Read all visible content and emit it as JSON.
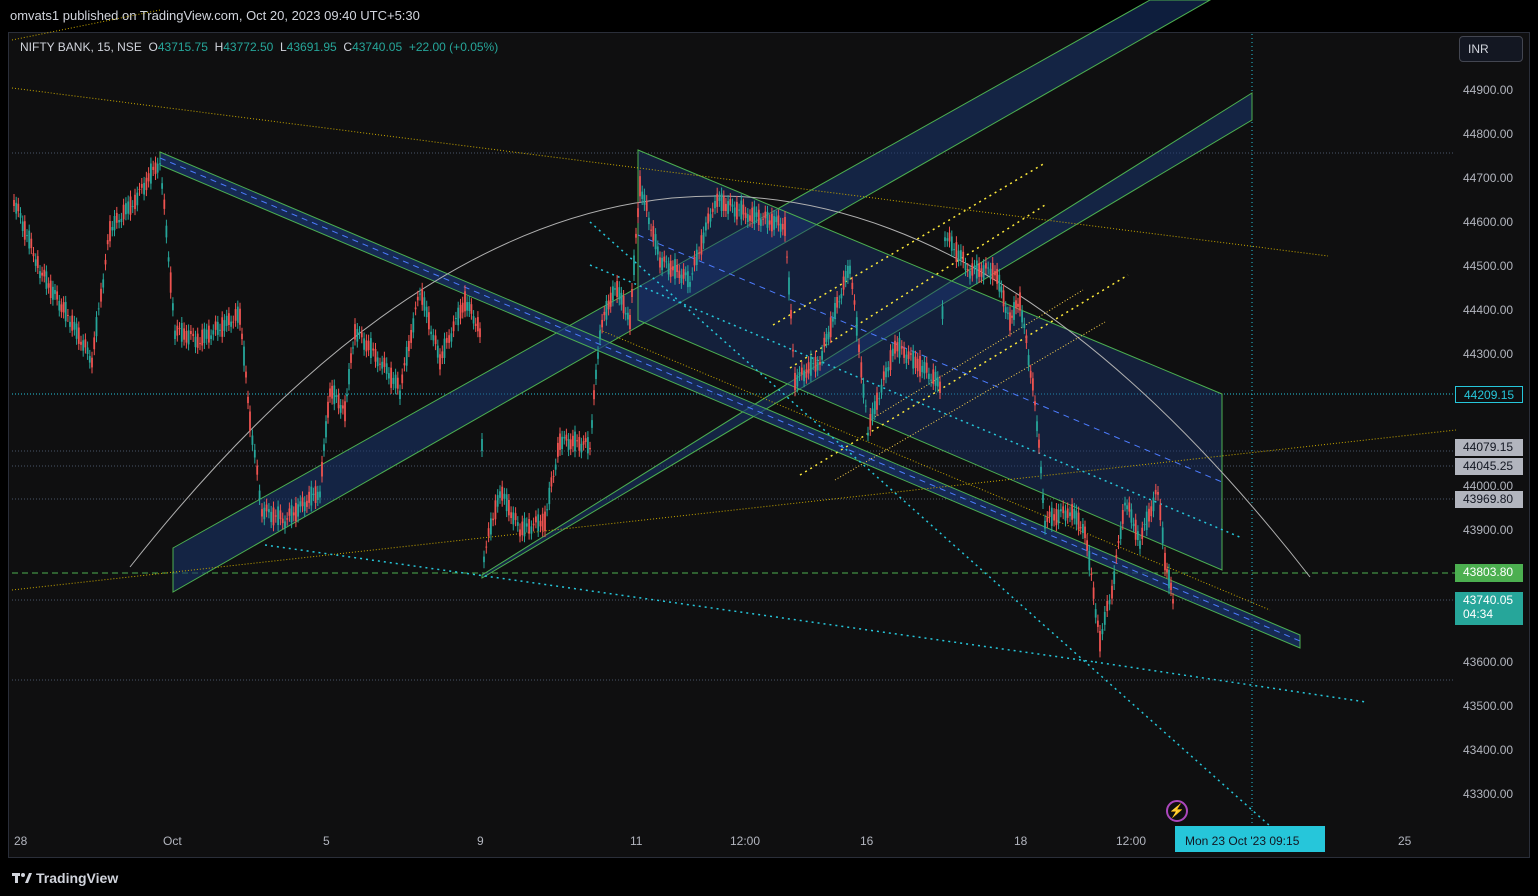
{
  "header": {
    "publish_text": "omvats1 published on TradingView.com, Oct 20, 2023 09:40 UTC+5:30"
  },
  "legend": {
    "symbol": "NIFTY BANK, 15, NSE",
    "open_label": "O",
    "open": "43715.75",
    "high_label": "H",
    "high": "43772.50",
    "low_label": "L",
    "low": "43691.95",
    "close_label": "C",
    "close": "43740.05",
    "change": "+22.00 (+0.05%)"
  },
  "currency_button": "INR",
  "price_axis": {
    "labels": [
      "44900.00",
      "44800.00",
      "44700.00",
      "44600.00",
      "44500.00",
      "44400.00",
      "44300.00",
      "44000.00",
      "43900.00",
      "43600.00",
      "43500.00",
      "43400.00",
      "43300.00"
    ],
    "tags": [
      {
        "text": "44209.15",
        "style": "outline"
      },
      {
        "text": "44079.15",
        "style": "grey"
      },
      {
        "text": "44045.25",
        "style": "grey"
      },
      {
        "text": "43969.80",
        "style": "grey"
      },
      {
        "text": "43803.80",
        "style": "green"
      }
    ],
    "last_price": "43740.05",
    "countdown": "04:34"
  },
  "time_axis": {
    "labels": [
      "28",
      "Oct",
      "5",
      "9",
      "11",
      "12:00",
      "16",
      "18",
      "12:00",
      "25"
    ],
    "cursor": "Mon 23 Oct '23   09:15"
  },
  "footer": {
    "brand": "TradingView"
  },
  "colors": {
    "up": "#26a69a",
    "down": "#ef5350",
    "channel": "#4caf50",
    "fill": "#1e3a8a",
    "accent": "#26c6da"
  }
}
